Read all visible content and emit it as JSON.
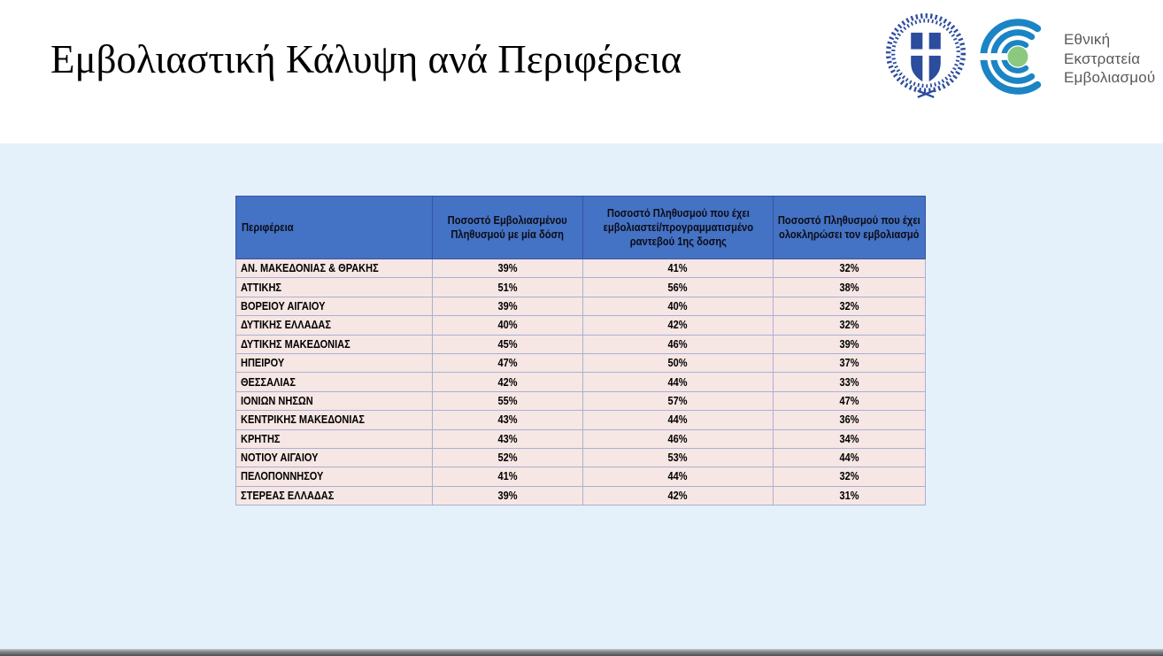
{
  "header": {
    "title": "Εμβολιαστική Κάλυψη ανά Περιφέρεια",
    "logos": {
      "emblem_name": "greek-government-emblem",
      "campaign": {
        "name": "national-vaccination-campaign-logo",
        "lines": [
          "Εθνική",
          "Εκστρατεία",
          "Εμβολιασμού"
        ]
      }
    }
  },
  "table": {
    "columns": [
      "Περιφέρεια",
      "Ποσοστό Εμβολιασμένου Πληθυσμού με μία δόση",
      "Ποσοστό Πληθυσμού  που έχει εμβολιαστεί/προγραμματισμένο ραντεβού 1ης δοσης",
      "Ποσοστό Πληθυσμού που έχει ολοκληρώσει τον εμβολιασμό"
    ],
    "rows": [
      [
        "ΑΝ. ΜΑΚΕΔΟΝΙΑΣ & ΘΡΑΚΗΣ",
        "39%",
        "41%",
        "32%"
      ],
      [
        "ΑΤΤΙΚΗΣ",
        "51%",
        "56%",
        "38%"
      ],
      [
        "ΒΟΡΕΙΟΥ ΑΙΓΑΙΟΥ",
        "39%",
        "40%",
        "32%"
      ],
      [
        "ΔΥΤΙΚΗΣ ΕΛΛΑΔΑΣ",
        "40%",
        "42%",
        "32%"
      ],
      [
        "ΔΥΤΙΚΗΣ ΜΑΚΕΔΟΝΙΑΣ",
        "45%",
        "46%",
        "39%"
      ],
      [
        "ΗΠΕΙΡΟΥ",
        "47%",
        "50%",
        "37%"
      ],
      [
        "ΘΕΣΣΑΛΙΑΣ",
        "42%",
        "44%",
        "33%"
      ],
      [
        "ΙΟΝΙΩΝ ΝΗΣΩΝ",
        "55%",
        "57%",
        "47%"
      ],
      [
        "ΚΕΝΤΡΙΚΗΣ ΜΑΚΕΔΟΝΙΑΣ",
        "43%",
        "44%",
        "36%"
      ],
      [
        "ΚΡΗΤΗΣ",
        "43%",
        "46%",
        "34%"
      ],
      [
        "ΝΟΤΙΟΥ ΑΙΓΑΙΟΥ",
        "52%",
        "53%",
        "44%"
      ],
      [
        "ΠΕΛΟΠΟΝΝΗΣΟΥ",
        "41%",
        "44%",
        "32%"
      ],
      [
        "ΣΤΕΡΕΑΣ ΕΛΛΑΔΑΣ",
        "39%",
        "42%",
        "31%"
      ]
    ]
  },
  "colors": {
    "header_bg": "#4472c4",
    "row_bg": "#f6e6e4",
    "panel_bg": "#e4f1fb",
    "emblem_blue": "#2c4c9e",
    "campaign_blue": "#1b84c4",
    "campaign_green": "#8cc87e",
    "logo_text_gray": "#58595c"
  },
  "chart_data": {
    "type": "table",
    "title": "Εμβολιαστική Κάλυψη ανά Περιφέρεια",
    "categories": [
      "ΑΝ. ΜΑΚΕΔΟΝΙΑΣ & ΘΡΑΚΗΣ",
      "ΑΤΤΙΚΗΣ",
      "ΒΟΡΕΙΟΥ ΑΙΓΑΙΟΥ",
      "ΔΥΤΙΚΗΣ ΕΛΛΑΔΑΣ",
      "ΔΥΤΙΚΗΣ ΜΑΚΕΔΟΝΙΑΣ",
      "ΗΠΕΙΡΟΥ",
      "ΘΕΣΣΑΛΙΑΣ",
      "ΙΟΝΙΩΝ ΝΗΣΩΝ",
      "ΚΕΝΤΡΙΚΗΣ ΜΑΚΕΔΟΝΙΑΣ",
      "ΚΡΗΤΗΣ",
      "ΝΟΤΙΟΥ ΑΙΓΑΙΟΥ",
      "ΠΕΛΟΠΟΝΝΗΣΟΥ",
      "ΣΤΕΡΕΑΣ ΕΛΛΑΔΑΣ"
    ],
    "series": [
      {
        "name": "Ποσοστό Εμβολιασμένου Πληθυσμού με μία δόση",
        "values": [
          39,
          51,
          39,
          40,
          45,
          47,
          42,
          55,
          43,
          43,
          52,
          41,
          39
        ]
      },
      {
        "name": "Ποσοστό Πληθυσμού που έχει εμβολιαστεί/προγραμματισμένο ραντεβού 1ης δοσης",
        "values": [
          41,
          56,
          40,
          42,
          46,
          50,
          44,
          57,
          44,
          46,
          53,
          44,
          42
        ]
      },
      {
        "name": "Ποσοστό Πληθυσμού που έχει ολοκληρώσει τον εμβολιασμό",
        "values": [
          32,
          38,
          32,
          32,
          39,
          37,
          33,
          47,
          36,
          34,
          44,
          32,
          31
        ]
      }
    ],
    "unit": "%"
  }
}
